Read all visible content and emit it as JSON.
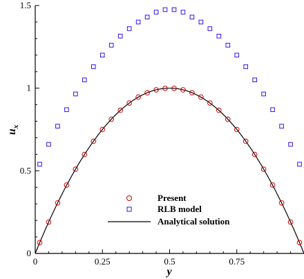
{
  "chart_data": {
    "type": "line",
    "xlabel": "y",
    "ylabel": "u",
    "ylabel_sub": "x",
    "xlim": [
      0,
      1
    ],
    "ylim": [
      0,
      1.5
    ],
    "xticks": [
      0,
      0.25,
      0.5,
      0.75
    ],
    "xtick_labels": [
      "0",
      "0.25",
      "0.5",
      "0.75"
    ],
    "yticks": [
      0,
      0.5,
      1,
      1.5
    ],
    "ytick_labels": [
      "0",
      "0.5",
      "1",
      "1.5"
    ],
    "grid": false,
    "legend_position": "bottom-center",
    "colors": {
      "present": "#cc0000",
      "rlb": "#3311ee",
      "analytical": "#000000"
    },
    "series": [
      {
        "name": "Present",
        "marker": "circle",
        "x": [
          0.0167,
          0.05,
          0.0833,
          0.1167,
          0.15,
          0.1833,
          0.2167,
          0.25,
          0.2833,
          0.3167,
          0.35,
          0.3833,
          0.4167,
          0.45,
          0.4833,
          0.5167,
          0.55,
          0.5833,
          0.6167,
          0.65,
          0.6833,
          0.7167,
          0.75,
          0.7833,
          0.8167,
          0.85,
          0.8833,
          0.9167,
          0.95,
          0.9833
        ],
        "y": [
          0.066,
          0.19,
          0.306,
          0.414,
          0.51,
          0.599,
          0.679,
          0.75,
          0.812,
          0.866,
          0.91,
          0.946,
          0.972,
          0.99,
          0.999,
          0.999,
          0.99,
          0.972,
          0.946,
          0.91,
          0.866,
          0.812,
          0.75,
          0.679,
          0.599,
          0.51,
          0.414,
          0.306,
          0.19,
          0.066
        ]
      },
      {
        "name": "RLB model",
        "marker": "square",
        "x": [
          0.0167,
          0.05,
          0.0833,
          0.1167,
          0.15,
          0.1833,
          0.2167,
          0.25,
          0.2833,
          0.3167,
          0.35,
          0.3833,
          0.4167,
          0.45,
          0.4833,
          0.5167,
          0.55,
          0.5833,
          0.6167,
          0.65,
          0.6833,
          0.7167,
          0.75,
          0.7833,
          0.8167,
          0.85,
          0.8833,
          0.9167,
          0.95,
          0.9833
        ],
        "y": [
          0.54,
          0.66,
          0.77,
          0.87,
          0.965,
          1.05,
          1.13,
          1.2,
          1.26,
          1.315,
          1.36,
          1.4,
          1.43,
          1.46,
          1.475,
          1.475,
          1.46,
          1.43,
          1.4,
          1.36,
          1.315,
          1.26,
          1.2,
          1.13,
          1.05,
          0.965,
          0.87,
          0.77,
          0.66,
          0.54
        ]
      },
      {
        "name": "Analytical solution",
        "marker": "none",
        "function": "4*y*(1-y)"
      }
    ]
  }
}
